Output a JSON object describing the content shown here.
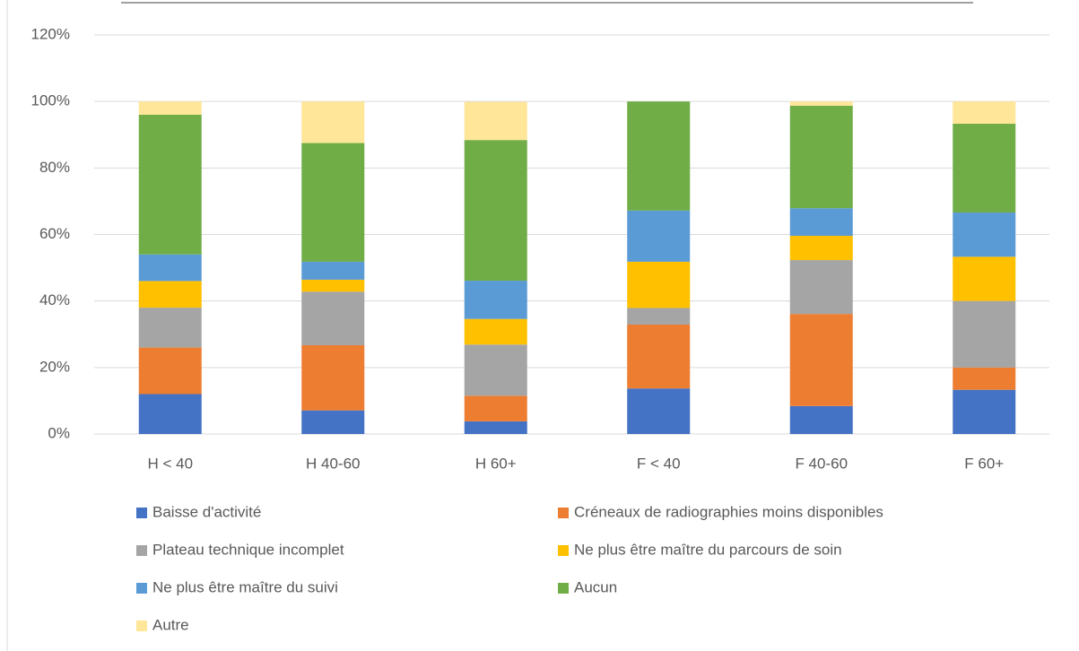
{
  "chart_data": {
    "type": "stacked_bar",
    "categories": [
      "H < 40",
      "H 40-60",
      "H 60+",
      "F < 40",
      "F 40-60",
      "F 60+"
    ],
    "series": [
      {
        "name": "Baisse d'activité",
        "color": "#4472c4",
        "values": [
          12,
          7.1,
          3.8,
          13.7,
          8.4,
          13.3
        ]
      },
      {
        "name": "Créneaux de radiographies moins disponibles",
        "color": "#ed7d31",
        "values": [
          14,
          19.6,
          7.7,
          19.2,
          27.7,
          6.7
        ]
      },
      {
        "name": "Plateau technique incomplet",
        "color": "#a5a5a5",
        "values": [
          12,
          16.1,
          15.4,
          5.0,
          16.2,
          20
        ]
      },
      {
        "name": "Ne plus être maître du parcours de soin",
        "color": "#ffc000",
        "values": [
          8,
          3.6,
          7.7,
          13.9,
          7.3,
          13.3
        ]
      },
      {
        "name": "Ne plus être maître du suivi",
        "color": "#5b9bd5",
        "values": [
          8,
          5.4,
          11.5,
          15.4,
          8.3,
          13.3
        ]
      },
      {
        "name": "Aucun",
        "color": "#70ad47",
        "values": [
          42,
          35.7,
          42.3,
          32.8,
          30.8,
          26.7
        ]
      },
      {
        "name": "Autre",
        "color": "#ffe699",
        "values": [
          4,
          12.5,
          11.5,
          0,
          1.3,
          6.7
        ]
      }
    ],
    "ylim": [
      0,
      120
    ],
    "yticks": [
      {
        "value": 0,
        "label": "0%"
      },
      {
        "value": 20,
        "label": "20%"
      },
      {
        "value": 40,
        "label": "40%"
      },
      {
        "value": 60,
        "label": "60%"
      },
      {
        "value": 80,
        "label": "80%"
      },
      {
        "value": 100,
        "label": "100%"
      },
      {
        "value": 120,
        "label": "120%"
      }
    ],
    "grid": true
  }
}
